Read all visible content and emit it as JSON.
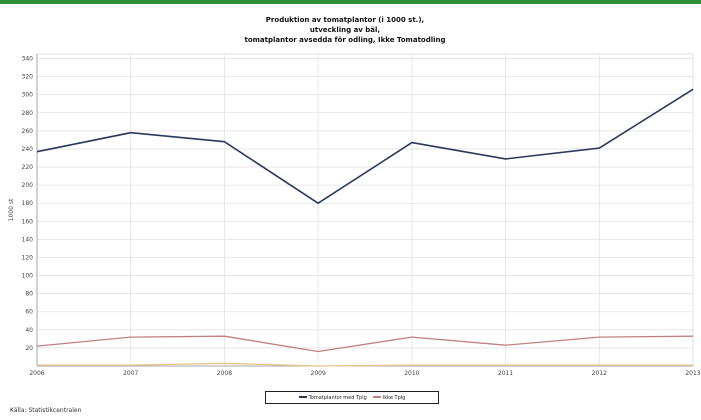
{
  "chart_data": {
    "type": "line",
    "title_lines": [
      "Produktion av tomatplantor (i 1000 st.),",
      "utveckling av bäl,",
      "tomatplantor avsedda för odling, Ikke Tomatodling"
    ],
    "ylabel": "1000 st",
    "x": [
      "2006",
      "2007",
      "2008",
      "2009",
      "2010",
      "2011",
      "2012",
      "2013"
    ],
    "y_ticks": [
      "20",
      "40",
      "60",
      "80",
      "100",
      "120",
      "140",
      "160",
      "180",
      "200",
      "220",
      "240",
      "260",
      "280",
      "300",
      "320",
      "340"
    ],
    "ylim": [
      0,
      345
    ],
    "series": [
      {
        "name": "",
        "color": "#2b3a5c",
        "values": [
          237,
          258,
          248,
          180,
          247,
          229,
          241,
          306
        ]
      },
      {
        "name": "",
        "color": "#c08080",
        "values": [
          22,
          32,
          33,
          16,
          32,
          23,
          32,
          33
        ]
      },
      {
        "name": "",
        "color": "#e8c58a",
        "values": [
          1,
          1,
          3,
          0,
          1,
          1,
          1,
          1
        ]
      }
    ],
    "grid": true,
    "legend_position": "bottom"
  },
  "legend": {
    "entries": [
      "Tomatplantor med Tplg",
      "Ikke Tplg"
    ]
  },
  "note": "Källa: Statistikcentralen"
}
